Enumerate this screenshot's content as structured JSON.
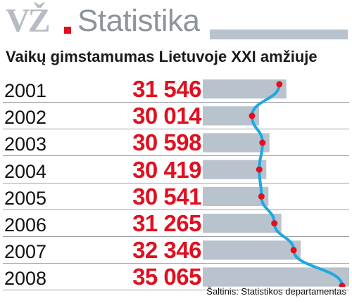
{
  "header": {
    "brand": "VŽ",
    "section": "Statistika"
  },
  "chart_data": {
    "type": "bar",
    "title": "Vaikų gimstamumas Lietuvoje XXI amžiuje",
    "categories": [
      "2001",
      "2002",
      "2003",
      "2004",
      "2005",
      "2006",
      "2007",
      "2008"
    ],
    "values": [
      31546,
      30014,
      30598,
      30419,
      30541,
      31265,
      32346,
      35065
    ],
    "value_labels": [
      "31 546",
      "30 014",
      "30 598",
      "30 419",
      "30 541",
      "31 265",
      "32 346",
      "35 065"
    ],
    "overlay": "line",
    "source": "Šaltinis: Statistikos departamentas"
  },
  "colors": {
    "bar": "#b9c3cd",
    "line": "#1ea8e0",
    "marker": "#e01020",
    "value_text": "#e01020"
  }
}
